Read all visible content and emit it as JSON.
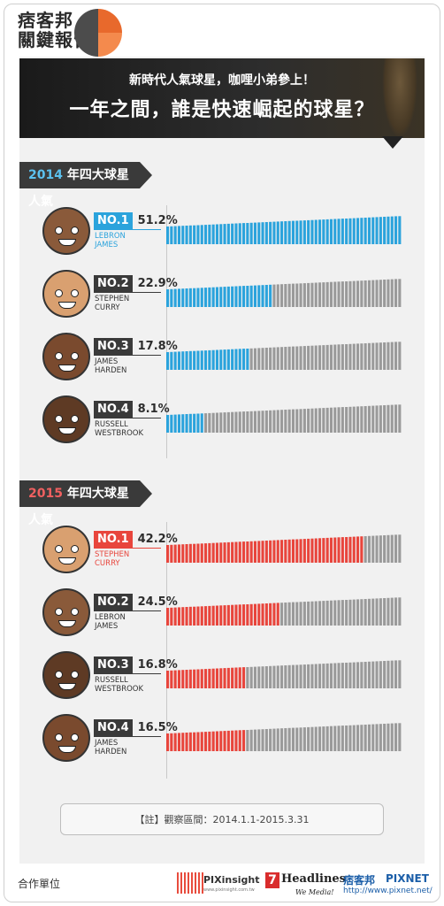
{
  "header": {
    "logo_line1": "痞客邦",
    "logo_line2": "關鍵報告",
    "banner_subtitle": "新時代人氣球星，咖哩小弟參上！",
    "banner_title": "一年之間，誰是快速崛起的球星？"
  },
  "colors": {
    "blue": "#2ba3dc",
    "red": "#e8453c",
    "gray": "#9a9a9a",
    "dark": "#3a3a3a"
  },
  "section_2014": {
    "year": "2014",
    "label": "年四大球星人氣"
  },
  "section_2015": {
    "year": "2015",
    "label": "年四大球星人氣"
  },
  "chart_data": [
    {
      "type": "bar",
      "title": "2014 年四大球星人氣",
      "categories": [
        "LEBRON JAMES",
        "STEPHEN CURRY",
        "JAMES HARDEN",
        "RUSSELL WESTBROOK"
      ],
      "ranks": [
        "NO.1",
        "NO.2",
        "NO.3",
        "NO.4"
      ],
      "values": [
        51.2,
        22.9,
        17.8,
        8.1
      ],
      "labels": [
        "51.2%",
        "22.9%",
        "17.8%",
        "8.1%"
      ],
      "name_lines": [
        [
          "LEBRON",
          "JAMES"
        ],
        [
          "STEPHEN",
          "CURRY"
        ],
        [
          "JAMES",
          "HARDEN"
        ],
        [
          "RUSSELL",
          "WESTBROOK"
        ]
      ],
      "scale_max": 51.2,
      "highlight_color": "#2ba3dc"
    },
    {
      "type": "bar",
      "title": "2015 年四大球星人氣",
      "categories": [
        "STEPHEN CURRY",
        "LEBRON JAMES",
        "RUSSELL WESTBROOK",
        "JAMES HARDEN"
      ],
      "ranks": [
        "NO.1",
        "NO.2",
        "NO.3",
        "NO.4"
      ],
      "values": [
        42.2,
        24.5,
        16.8,
        16.5
      ],
      "labels": [
        "42.2%",
        "24.5%",
        "16.8%",
        "16.5%"
      ],
      "name_lines": [
        [
          "STEPHEN",
          "CURRY"
        ],
        [
          "LEBRON",
          "JAMES"
        ],
        [
          "RUSSELL",
          "WESTBROOK"
        ],
        [
          "JAMES",
          "HARDEN"
        ]
      ],
      "scale_max": 51.2,
      "highlight_color": "#e8453c"
    }
  ],
  "note": "【註】觀察區間：2014.1.1-2015.3.31",
  "footer": {
    "label": "合作單位",
    "pixinsight": "PIXinsight",
    "pixinsight_url": "www.pixinsight.com.tw",
    "headlines": "Headlines",
    "headlines_num": "7",
    "headlines_tag": "We Media!",
    "pixnet_cn": "痞客邦",
    "pixnet_en": "PIXNET",
    "pixnet_url": "http://www.pixnet.net/"
  }
}
